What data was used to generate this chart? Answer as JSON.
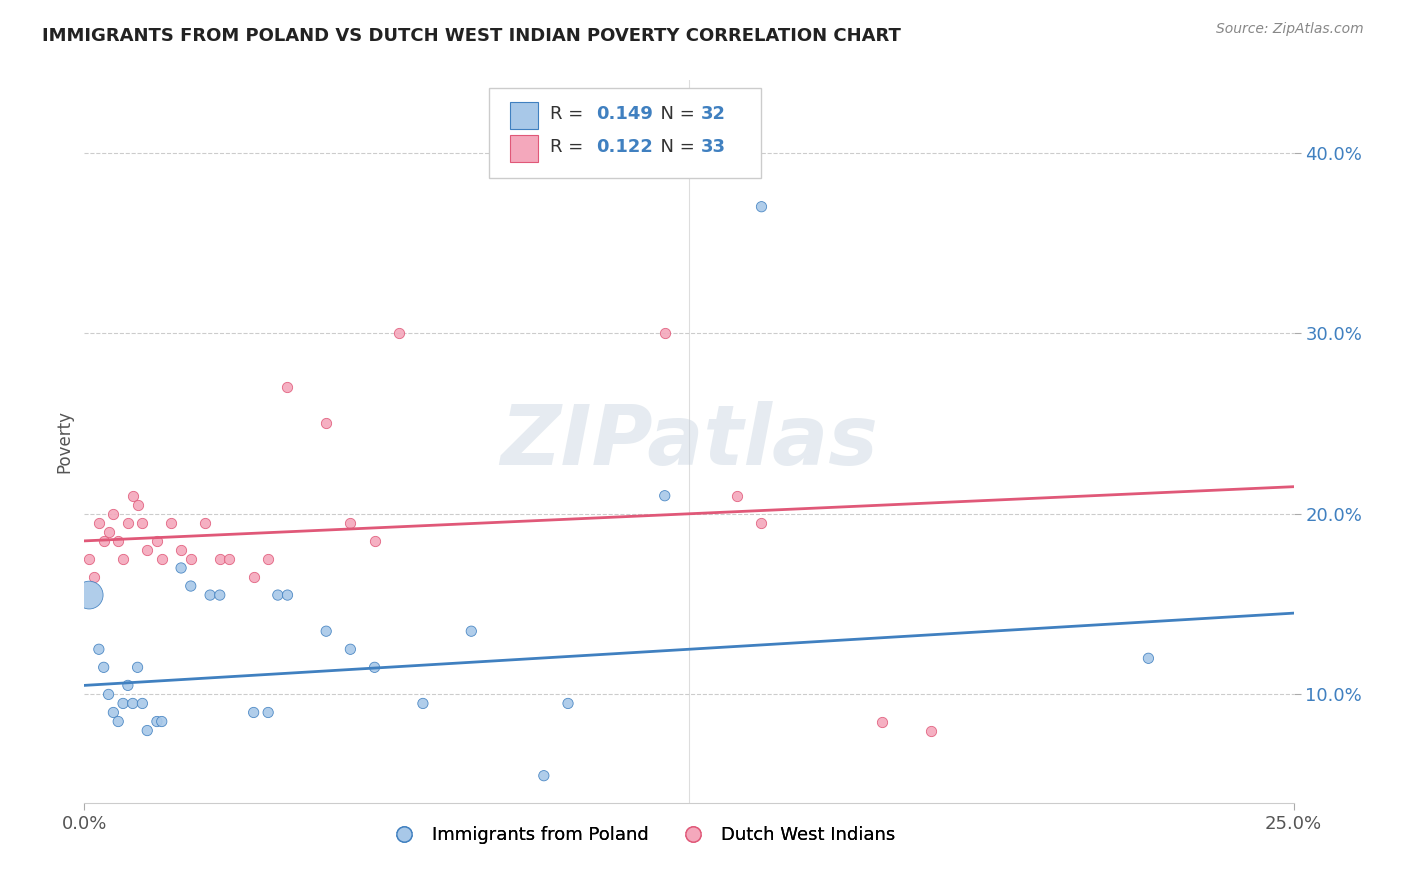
{
  "title": "IMMIGRANTS FROM POLAND VS DUTCH WEST INDIAN POVERTY CORRELATION CHART",
  "source": "Source: ZipAtlas.com",
  "ylabel": "Poverty",
  "y_tick_labels": [
    "10.0%",
    "20.0%",
    "30.0%",
    "40.0%"
  ],
  "y_tick_values": [
    0.1,
    0.2,
    0.3,
    0.4
  ],
  "x_range": [
    0.0,
    0.25
  ],
  "y_range": [
    0.04,
    0.44
  ],
  "legend1_r": "0.149",
  "legend1_n": "32",
  "legend2_r": "0.122",
  "legend2_n": "33",
  "blue_color": "#a8c8e8",
  "pink_color": "#f4a8bc",
  "blue_line_color": "#4080c0",
  "pink_line_color": "#e05878",
  "blue_scatter": [
    [
      0.001,
      0.155
    ],
    [
      0.003,
      0.125
    ],
    [
      0.004,
      0.115
    ],
    [
      0.005,
      0.1
    ],
    [
      0.006,
      0.09
    ],
    [
      0.007,
      0.085
    ],
    [
      0.008,
      0.095
    ],
    [
      0.009,
      0.105
    ],
    [
      0.01,
      0.095
    ],
    [
      0.011,
      0.115
    ],
    [
      0.012,
      0.095
    ],
    [
      0.013,
      0.08
    ],
    [
      0.015,
      0.085
    ],
    [
      0.016,
      0.085
    ],
    [
      0.02,
      0.17
    ],
    [
      0.022,
      0.16
    ],
    [
      0.026,
      0.155
    ],
    [
      0.028,
      0.155
    ],
    [
      0.035,
      0.09
    ],
    [
      0.038,
      0.09
    ],
    [
      0.04,
      0.155
    ],
    [
      0.042,
      0.155
    ],
    [
      0.05,
      0.135
    ],
    [
      0.055,
      0.125
    ],
    [
      0.06,
      0.115
    ],
    [
      0.07,
      0.095
    ],
    [
      0.08,
      0.135
    ],
    [
      0.095,
      0.055
    ],
    [
      0.1,
      0.095
    ],
    [
      0.12,
      0.21
    ],
    [
      0.14,
      0.37
    ],
    [
      0.22,
      0.12
    ]
  ],
  "blue_large_idx": 0,
  "blue_size_default": 55,
  "blue_size_large": 400,
  "pink_scatter": [
    [
      0.001,
      0.175
    ],
    [
      0.002,
      0.165
    ],
    [
      0.003,
      0.195
    ],
    [
      0.004,
      0.185
    ],
    [
      0.005,
      0.19
    ],
    [
      0.006,
      0.2
    ],
    [
      0.007,
      0.185
    ],
    [
      0.008,
      0.175
    ],
    [
      0.009,
      0.195
    ],
    [
      0.01,
      0.21
    ],
    [
      0.011,
      0.205
    ],
    [
      0.012,
      0.195
    ],
    [
      0.013,
      0.18
    ],
    [
      0.015,
      0.185
    ],
    [
      0.016,
      0.175
    ],
    [
      0.018,
      0.195
    ],
    [
      0.02,
      0.18
    ],
    [
      0.022,
      0.175
    ],
    [
      0.025,
      0.195
    ],
    [
      0.028,
      0.175
    ],
    [
      0.03,
      0.175
    ],
    [
      0.035,
      0.165
    ],
    [
      0.038,
      0.175
    ],
    [
      0.042,
      0.27
    ],
    [
      0.05,
      0.25
    ],
    [
      0.055,
      0.195
    ],
    [
      0.06,
      0.185
    ],
    [
      0.065,
      0.3
    ],
    [
      0.12,
      0.3
    ],
    [
      0.135,
      0.21
    ],
    [
      0.14,
      0.195
    ],
    [
      0.165,
      0.085
    ],
    [
      0.175,
      0.08
    ]
  ],
  "pink_size_default": 55,
  "background_color": "#ffffff",
  "watermark_text": "ZIPatlas",
  "watermark_color": "#c8d4e0",
  "watermark_alpha": 0.45
}
